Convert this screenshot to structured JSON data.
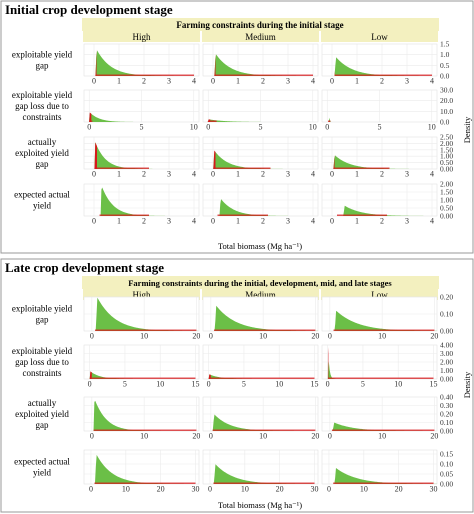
{
  "colors": {
    "fill_green": "#6bbf47",
    "fill_red": "#d7191c",
    "line_red": "#d7191c",
    "header_bg": "#f3f0bf",
    "panel_bg": "#ffffff",
    "grid": "#ebebeb",
    "frame": "#8c8c8c",
    "section_border": "#9a9a9a"
  },
  "chart_data": [
    {
      "type": "area",
      "section_title": "Initial crop development stage",
      "header": "Farming constraints during the initial stage",
      "columns": [
        "High",
        "Medium",
        "Low"
      ],
      "x_label": "Total biomass (Mg ha⁻¹)",
      "y_label": "Density",
      "rows": [
        {
          "label": [
            "exploitable yield",
            "gap"
          ],
          "xlim": [
            -0.4,
            4.2
          ],
          "xticks": [
            "0",
            "1",
            "2",
            "3",
            "4"
          ],
          "ylim": [
            0,
            1.5
          ],
          "yticks": [
            "0.0",
            "0.5",
            "1.0",
            "1.5"
          ],
          "show_xticks": true,
          "series": [
            {
              "column": "High",
              "mode": 0.1,
              "peak": 1.25,
              "spread": 0.75,
              "red_end": 0.1,
              "red_line_end": 4.0
            },
            {
              "column": "Medium",
              "mode": 0.1,
              "peak": 1.05,
              "spread": 0.8,
              "red_end": 0.1,
              "red_line_end": 4.0
            },
            {
              "column": "Low",
              "mode": 0.15,
              "peak": 0.9,
              "spread": 0.85,
              "red_end": 0.12,
              "red_line_end": 4.0
            }
          ]
        },
        {
          "label": [
            "exploitable yield",
            "gap loss due to",
            "constraints"
          ],
          "xlim": [
            -0.5,
            10.5
          ],
          "xticks": [
            "0",
            "5",
            "10"
          ],
          "ylim": [
            0,
            30
          ],
          "yticks": [
            "0.0",
            "10.0",
            "20.0",
            "30.0"
          ],
          "show_xticks": true,
          "series": [
            {
              "column": "High",
              "mode": 0.05,
              "peak": 9.0,
              "spread": 1.2,
              "red_end": 0.2,
              "red_line_end": 0.3,
              "green_line_end": 6.5
            },
            {
              "column": "Medium",
              "mode": 0.05,
              "peak": 2.5,
              "spread": 2.0,
              "red_end": 0.2,
              "red_line_end": 0.8,
              "green_line_end": 5.0
            },
            {
              "column": "Low",
              "mode": 0.15,
              "peak": 31.0,
              "spread": 0.05,
              "red_end": 0.08,
              "red_line_end": 0.3,
              "green_line_end": 9.5
            }
          ]
        },
        {
          "label": [
            "actually",
            "exploited yield",
            "gap"
          ],
          "xlim": [
            -0.4,
            4.2
          ],
          "xticks": [
            "0",
            "1",
            "2",
            "3",
            "4"
          ],
          "ylim": [
            0,
            2.5
          ],
          "yticks": [
            "0.00",
            "0.50",
            "1.00",
            "1.50",
            "2.00",
            "2.50"
          ],
          "show_xticks": true,
          "series": [
            {
              "column": "High",
              "mode": 0.05,
              "peak": 2.1,
              "spread": 0.55,
              "red_end": 0.12,
              "red_line_end": 2.2
            },
            {
              "column": "Medium",
              "mode": 0.05,
              "peak": 1.45,
              "spread": 0.7,
              "red_end": 0.1,
              "red_line_end": 2.3
            },
            {
              "column": "Low",
              "mode": 0.1,
              "peak": 1.1,
              "spread": 0.8,
              "red_end": 0.1,
              "red_line_end": 2.3
            }
          ]
        },
        {
          "label": [
            "expected actual",
            "yield"
          ],
          "xlim": [
            -0.4,
            4.2
          ],
          "xticks": [
            "0",
            "1",
            "2",
            "3",
            "4"
          ],
          "ylim": [
            0,
            2.0
          ],
          "yticks": [
            "0.00",
            "0.50",
            "1.00",
            "1.50",
            "2.00"
          ],
          "show_xticks": true,
          "series": [
            {
              "column": "High",
              "mode": 0.3,
              "peak": 1.9,
              "spread": 0.6,
              "red_end": 0.22,
              "red_line_end": 2.2
            },
            {
              "column": "Medium",
              "mode": 0.3,
              "peak": 1.1,
              "spread": 0.7,
              "red_end": 0.18,
              "red_line_end": 2.2
            },
            {
              "column": "Low",
              "mode": 0.5,
              "peak": 0.65,
              "spread": 0.9,
              "red_end": 0.2,
              "red_line_end": 2.2
            }
          ]
        }
      ]
    },
    {
      "type": "area",
      "section_title": "Late crop development stage",
      "header": "Farming constraints during the initial, development, mid, and late stages",
      "columns": [
        "High",
        "Medium",
        "Low"
      ],
      "x_label": "Total biomass (Mg ha⁻¹)",
      "y_label": "Density",
      "rows": [
        {
          "label": [
            "exploitable yield",
            "gap"
          ],
          "xlim": [
            -1.5,
            20.5
          ],
          "xticks": [
            "0",
            "10",
            "20"
          ],
          "ylim": [
            0,
            0.2
          ],
          "yticks": [
            "0.00",
            "0.10",
            "0.20"
          ],
          "show_xticks": true,
          "series": [
            {
              "column": "High",
              "mode": 1.0,
              "peak": 0.2,
              "spread": 4.5,
              "red_end": 0.6,
              "red_line_end": 20.0
            },
            {
              "column": "Medium",
              "mode": 1.0,
              "peak": 0.15,
              "spread": 5.0,
              "red_end": 0.6,
              "red_line_end": 20.0
            },
            {
              "column": "Low",
              "mode": 1.2,
              "peak": 0.12,
              "spread": 5.5,
              "red_end": 0.7,
              "red_line_end": 20.0
            }
          ]
        },
        {
          "label": [
            "exploitable yield",
            "gap loss due to",
            "constraints"
          ],
          "xlim": [
            -0.8,
            15.5
          ],
          "xticks": [
            "0",
            "5",
            "10",
            "15"
          ],
          "ylim": [
            0,
            4.0
          ],
          "yticks": [
            "0.00",
            "1.00",
            "2.00",
            "3.00",
            "4.00"
          ],
          "show_xticks": true,
          "series": [
            {
              "column": "High",
              "mode": 0.1,
              "peak": 0.9,
              "spread": 1.8,
              "red_end": 0.3,
              "red_line_end": 15.0
            },
            {
              "column": "Medium",
              "mode": 0.1,
              "peak": 0.55,
              "spread": 2.0,
              "red_end": 0.3,
              "red_line_end": 15.0
            },
            {
              "column": "Low",
              "mode": 0.05,
              "peak": 3.8,
              "spread": 0.25,
              "red_end": 0.1,
              "red_line_end": 15.0
            }
          ]
        },
        {
          "label": [
            "actually",
            "exploited yield",
            "gap"
          ],
          "xlim": [
            -1.5,
            20.5
          ],
          "xticks": [
            "0",
            "10",
            "20"
          ],
          "ylim": [
            0,
            0.4
          ],
          "yticks": [
            "0.00",
            "0.10",
            "0.20",
            "0.30",
            "0.40"
          ],
          "show_xticks": true,
          "series": [
            {
              "column": "High",
              "mode": 0.5,
              "peak": 0.38,
              "spread": 3.0,
              "red_end": 0.35,
              "red_line_end": 20.0
            },
            {
              "column": "Medium",
              "mode": 0.6,
              "peak": 0.2,
              "spread": 4.0,
              "red_end": 0.35,
              "red_line_end": 20.0
            },
            {
              "column": "Low",
              "mode": 0.8,
              "peak": 0.1,
              "spread": 5.0,
              "red_end": 0.4,
              "red_line_end": 20.0
            }
          ]
        },
        {
          "label": [
            "expected actual",
            "yield"
          ],
          "xlim": [
            -2,
            31
          ],
          "xticks": [
            "0",
            "10",
            "20",
            "30"
          ],
          "ylim": [
            0,
            0.17
          ],
          "yticks": [
            "0.00",
            "0.05",
            "0.10",
            "0.15"
          ],
          "show_xticks": true,
          "series": [
            {
              "column": "High",
              "mode": 1.5,
              "peak": 0.15,
              "spread": 6.0,
              "red_end": 1.0,
              "red_line_end": 30.0
            },
            {
              "column": "Medium",
              "mode": 1.5,
              "peak": 0.1,
              "spread": 7.0,
              "red_end": 1.0,
              "red_line_end": 30.0
            },
            {
              "column": "Low",
              "mode": 2.0,
              "peak": 0.08,
              "spread": 8.0,
              "red_end": 1.2,
              "red_line_end": 30.0
            }
          ]
        }
      ]
    }
  ]
}
